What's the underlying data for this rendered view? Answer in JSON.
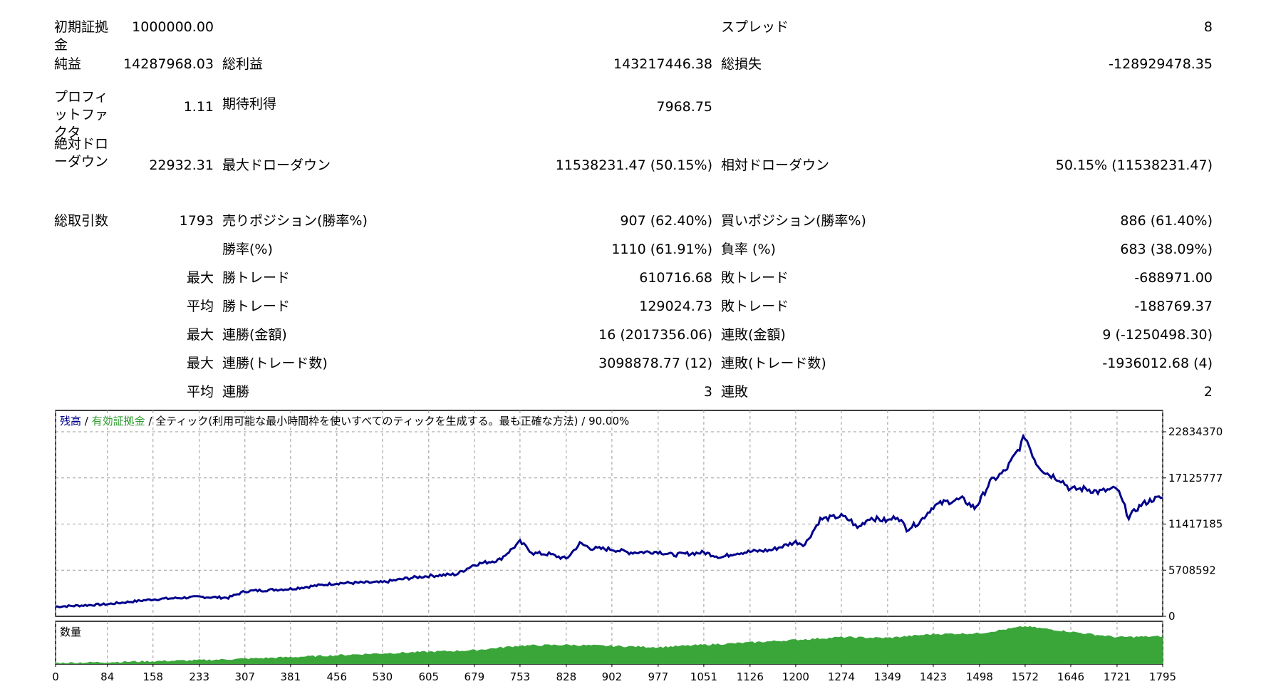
{
  "report": {
    "rows": [
      {
        "label": "初期証拠金",
        "v1": "1000000.00",
        "l2": "",
        "v2": "",
        "l3": "スプレッド",
        "v3": "8"
      },
      {
        "label": "純益",
        "v1": "14287968.03",
        "l2": "総利益",
        "v2": "143217446.38",
        "l3": "総損失",
        "v3": "-128929478.35"
      },
      {
        "label": "プロフィットファクタ",
        "v1": "1.11",
        "l2": "期待利得",
        "v2": "7968.75",
        "l3": "",
        "v3": ""
      },
      {
        "label": "絶対ドローダウン",
        "v1": "22932.31",
        "l2": "最大ドローダウン",
        "v2": "11538231.47 (50.15%)",
        "l3": "相対ドローダウン",
        "v3": "50.15% (11538231.47)"
      },
      {
        "label": "総取引数",
        "v1": "1793",
        "l2": "売りポジション(勝率%)",
        "v2": "907 (62.40%)",
        "l3": "買いポジション(勝率%)",
        "v3": "886 (61.40%)"
      },
      {
        "label": "",
        "v1": "",
        "l2": "勝率(%)",
        "v2": "1110 (61.91%)",
        "l3": "負率 (%)",
        "v3": "683 (38.09%)"
      },
      {
        "label": "",
        "v1": "最大",
        "l2": "勝トレード",
        "v2": "610716.68",
        "l3": "敗トレード",
        "v3": "-688971.00"
      },
      {
        "label": "",
        "v1": "平均",
        "l2": "勝トレード",
        "v2": "129024.73",
        "l3": "敗トレード",
        "v3": "-188769.37"
      },
      {
        "label": "",
        "v1": "最大",
        "l2": "連勝(金額)",
        "v2": "16 (2017356.06)",
        "l3": "連敗(金額)",
        "v3": "9 (-1250498.30)"
      },
      {
        "label": "",
        "v1": "最大",
        "l2": "連勝(トレード数)",
        "v2": "3098878.77 (12)",
        "l3": "連敗(トレード数)",
        "v3": "-1936012.68 (4)"
      },
      {
        "label": "",
        "v1": "平均",
        "l2": "連勝",
        "v2": "3",
        "l3": "連敗",
        "v3": "2"
      }
    ]
  },
  "chart_data": {
    "type": "line",
    "header": {
      "balance_label": "残高",
      "sep1": " / ",
      "equity_label": "有効証拠金",
      "rest": " / 全ティック(利用可能な最小時間枠を使いすべてのティックを生成する。最も正確な方法) / 90.00%"
    },
    "volume_label": "数量",
    "colors": {
      "balance": "#00008b",
      "equity": "#2e9b2e",
      "volume": "#3aa63a",
      "grid": "#9a9a9a"
    },
    "y_ticks": [
      "22834370",
      "17125777",
      "11417185",
      "5708592",
      "0"
    ],
    "y_tick_values": [
      22834370,
      17125777,
      11417185,
      5708592,
      0
    ],
    "x_ticks": [
      "0",
      "84",
      "158",
      "233",
      "307",
      "381",
      "456",
      "530",
      "605",
      "679",
      "753",
      "828",
      "902",
      "977",
      "1051",
      "1126",
      "1200",
      "1274",
      "1349",
      "1423",
      "1498",
      "1572",
      "1646",
      "1721",
      "1795"
    ],
    "x_tick_values": [
      0,
      84,
      158,
      233,
      307,
      381,
      456,
      530,
      605,
      679,
      753,
      828,
      902,
      977,
      1051,
      1126,
      1200,
      1274,
      1349,
      1423,
      1498,
      1572,
      1646,
      1721,
      1795
    ],
    "ylim": [
      0,
      22834370
    ],
    "xlim": [
      0,
      1795
    ],
    "series": [
      {
        "values_x": [
          0,
          30,
          84,
          158,
          233,
          280,
          307,
          381,
          456,
          530,
          570,
          605,
          650,
          679,
          720,
          753,
          775,
          800,
          828,
          850,
          870,
          902,
          930,
          977,
          1000,
          1051,
          1080,
          1100,
          1126,
          1160,
          1200,
          1215,
          1240,
          1274,
          1290,
          1300,
          1320,
          1349,
          1365,
          1380,
          1400,
          1423,
          1440,
          1470,
          1490,
          1498,
          1515,
          1540,
          1560,
          1572,
          1590,
          1605,
          1630,
          1646,
          1670,
          1690,
          1721,
          1740,
          1760,
          1780,
          1795
        ],
        "values_y": [
          1200000,
          1300000,
          1500000,
          2100000,
          2400000,
          2300000,
          3100000,
          3400000,
          4100000,
          4200000,
          4700000,
          5000000,
          5200000,
          6400000,
          7000000,
          9200000,
          7800000,
          7700000,
          7100000,
          9000000,
          8400000,
          8300000,
          7900000,
          8000000,
          7600000,
          7900000,
          7300000,
          7800000,
          8000000,
          8200000,
          9200000,
          8900000,
          12000000,
          12400000,
          11800000,
          10900000,
          12200000,
          11800000,
          12400000,
          10800000,
          11600000,
          13600000,
          14100000,
          14500000,
          13400000,
          14200000,
          16600000,
          18000000,
          20500000,
          22300000,
          19000000,
          17800000,
          16900000,
          15700000,
          15800000,
          15400000,
          15800000,
          12300000,
          13800000,
          14500000,
          14700000
        ]
      }
    ],
    "volume": {
      "values_x": [
        0,
        84,
        233,
        381,
        530,
        679,
        753,
        828,
        977,
        1126,
        1200,
        1274,
        1349,
        1423,
        1498,
        1572,
        1646,
        1721,
        1795
      ],
      "values_y": [
        0.03,
        0.05,
        0.1,
        0.18,
        0.28,
        0.36,
        0.48,
        0.5,
        0.44,
        0.56,
        0.63,
        0.7,
        0.68,
        0.78,
        0.8,
        0.98,
        0.84,
        0.7,
        0.72
      ]
    }
  }
}
